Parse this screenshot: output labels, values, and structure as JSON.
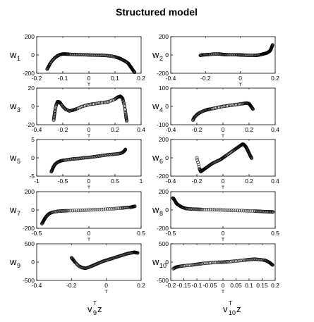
{
  "title": "Structured model",
  "chart_data": [
    {
      "type": "scatter",
      "ylabel": "w",
      "ylabel_sub": "1",
      "xlim": [
        -0.2,
        0.2
      ],
      "ylim": [
        -200,
        200
      ],
      "xticks": [
        -0.2,
        -0.1,
        0,
        0.1,
        0.2
      ],
      "xtick_labels": [
        "-0.2",
        "-0.1",
        "0",
        "0.1",
        "0.2"
      ],
      "yticks": [
        -200,
        0,
        200
      ],
      "ytick_labels": [
        "-200",
        "0",
        "200"
      ],
      "x": [
        -0.16,
        -0.155,
        -0.15,
        -0.14,
        -0.13,
        -0.12,
        -0.11,
        -0.1,
        -0.09,
        -0.08,
        -0.06,
        -0.04,
        -0.02,
        0,
        0.02,
        0.04,
        0.06,
        0.08,
        0.1,
        0.11,
        0.12,
        0.13,
        0.14,
        0.15,
        0.155,
        0.16,
        0.165,
        0.17,
        0.175
      ],
      "y": [
        -155,
        -130,
        -100,
        -60,
        -30,
        -10,
        5,
        10,
        10,
        8,
        5,
        3,
        2,
        0,
        -2,
        -3,
        -5,
        -10,
        -20,
        -30,
        -40,
        -55,
        -70,
        -90,
        -110,
        -130,
        -150,
        -170,
        -190
      ]
    },
    {
      "type": "scatter",
      "ylabel": "w",
      "ylabel_sub": "2",
      "xlim": [
        -0.4,
        0.2
      ],
      "ylim": [
        -200,
        200
      ],
      "xticks": [
        -0.4,
        -0.2,
        0,
        0.2
      ],
      "xtick_labels": [
        "-0.4",
        "-0.2",
        "0",
        "0.2"
      ],
      "yticks": [
        -200,
        0,
        200
      ],
      "ytick_labels": [
        "-200",
        "0",
        "200"
      ],
      "x": [
        -0.23,
        -0.22,
        -0.2,
        -0.18,
        -0.15,
        -0.12,
        -0.1,
        -0.08,
        -0.05,
        -0.02,
        0,
        0.02,
        0.05,
        0.08,
        0.1,
        0.12,
        0.13,
        0.14,
        0.15,
        0.16,
        0.17,
        0.175,
        0.18,
        0.185
      ],
      "y": [
        -5,
        0,
        2,
        5,
        10,
        10,
        5,
        3,
        2,
        2,
        0,
        -2,
        -5,
        -5,
        -3,
        5,
        10,
        15,
        20,
        30,
        45,
        60,
        85,
        110
      ]
    },
    {
      "type": "scatter",
      "ylabel": "w",
      "ylabel_sub": "3",
      "xlim": [
        -0.4,
        0.4
      ],
      "ylim": [
        -20,
        20
      ],
      "xticks": [
        -0.4,
        -0.2,
        0,
        0.2,
        0.4
      ],
      "xtick_labels": [
        "-0.4",
        "-0.2",
        "0",
        "0.2",
        "0.4"
      ],
      "yticks": [
        -20,
        0,
        20
      ],
      "ytick_labels": [
        "-20",
        "0",
        "20"
      ],
      "x": [
        -0.27,
        -0.265,
        -0.26,
        -0.25,
        -0.24,
        -0.23,
        -0.22,
        -0.2,
        -0.18,
        -0.15,
        -0.12,
        -0.1,
        -0.05,
        0,
        0.05,
        0.1,
        0.15,
        0.2,
        0.22,
        0.24,
        0.25,
        0.26,
        0.27,
        0.28,
        0.285,
        0.29
      ],
      "y": [
        -15,
        -10,
        -5,
        2,
        5,
        5,
        4,
        0,
        -3,
        -5,
        -4,
        -3,
        0,
        2,
        3,
        4,
        5,
        8,
        10,
        11,
        10,
        8,
        2,
        -6,
        -12,
        -16
      ]
    },
    {
      "type": "scatter",
      "ylabel": "w",
      "ylabel_sub": "4",
      "xlim": [
        -0.4,
        0.4
      ],
      "ylim": [
        -100,
        100
      ],
      "xticks": [
        -0.4,
        -0.2,
        0,
        0.2,
        0.4
      ],
      "xtick_labels": [
        "-0.4",
        "-0.2",
        "0",
        "0.2",
        "0.4"
      ],
      "yticks": [
        -100,
        0,
        100
      ],
      "ytick_labels": [
        "-100",
        "0",
        "100"
      ],
      "x": [
        -0.23,
        -0.22,
        -0.2,
        -0.18,
        -0.15,
        -0.12,
        -0.1,
        -0.05,
        0,
        0.05,
        0.1,
        0.15,
        0.18,
        0.2,
        0.21,
        0.22,
        0.23
      ],
      "y": [
        -75,
        -60,
        -45,
        -35,
        -25,
        -18,
        -15,
        -8,
        0,
        5,
        10,
        15,
        18,
        15,
        5,
        -5,
        -15
      ]
    },
    {
      "type": "scatter",
      "ylabel": "w",
      "ylabel_sub": "5",
      "xlim": [
        -1,
        1
      ],
      "ylim": [
        -5,
        5
      ],
      "xticks": [
        -1,
        -0.5,
        0,
        0.5,
        1
      ],
      "xtick_labels": [
        "-1",
        "-0.5",
        "0",
        "0.5",
        "1"
      ],
      "yticks": [
        -5,
        0,
        5
      ],
      "ytick_labels": [
        "-5",
        "0",
        "5"
      ],
      "x": [
        -0.72,
        -0.7,
        -0.68,
        -0.65,
        -0.6,
        -0.55,
        -0.5,
        -0.4,
        -0.3,
        -0.2,
        -0.1,
        0,
        0.1,
        0.2,
        0.3,
        0.4,
        0.5,
        0.6,
        0.65,
        0.68,
        0.7
      ],
      "y": [
        -3.8,
        -3.2,
        -2.5,
        -1.8,
        -1.2,
        -0.9,
        -0.7,
        -0.5,
        -0.3,
        -0.2,
        0,
        0.1,
        0.3,
        0.5,
        0.7,
        0.9,
        1.0,
        1.2,
        1.5,
        1.9,
        2.3
      ]
    },
    {
      "type": "scatter",
      "ylabel": "w",
      "ylabel_sub": "6",
      "xlim": [
        -0.4,
        0.4
      ],
      "ylim": [
        -200,
        200
      ],
      "xticks": [
        -0.4,
        -0.2,
        0,
        0.2,
        0.4
      ],
      "xtick_labels": [
        "-0.4",
        "-0.2",
        "0",
        "0.2",
        "0.4"
      ],
      "yticks": [
        -200,
        0,
        200
      ],
      "ytick_labels": [
        "-200",
        "0",
        "200"
      ],
      "x": [
        -0.2,
        -0.18,
        -0.17,
        -0.16,
        -0.15,
        -0.14,
        -0.12,
        -0.1,
        -0.08,
        -0.05,
        -0.02,
        0,
        0.02,
        0.05,
        0.08,
        0.1,
        0.12,
        0.14,
        0.15,
        0.16,
        0.17,
        0.18,
        0.19,
        0.2,
        0.21,
        0.22
      ],
      "y": [
        0,
        -120,
        -150,
        -140,
        -130,
        -120,
        -100,
        -80,
        -60,
        -40,
        -20,
        0,
        20,
        50,
        80,
        100,
        120,
        140,
        150,
        145,
        130,
        110,
        80,
        50,
        20,
        -5
      ]
    },
    {
      "type": "scatter",
      "ylabel": "w",
      "ylabel_sub": "7",
      "xlim": [
        -0.5,
        0.5
      ],
      "ylim": [
        -200,
        200
      ],
      "xticks": [
        -0.5,
        0,
        0.5
      ],
      "xtick_labels": [
        "-0.5",
        "0",
        "0.5"
      ],
      "yticks": [
        -200,
        0,
        200
      ],
      "ytick_labels": [
        "-200",
        "0",
        "200"
      ],
      "x": [
        -0.45,
        -0.44,
        -0.43,
        -0.42,
        -0.4,
        -0.38,
        -0.35,
        -0.3,
        -0.25,
        -0.2,
        -0.1,
        0,
        0.1,
        0.2,
        0.3,
        0.35,
        0.4,
        0.42,
        0.44
      ],
      "y": [
        -150,
        -130,
        -110,
        -90,
        -60,
        -40,
        -25,
        -15,
        -10,
        -8,
        -5,
        0,
        5,
        10,
        20,
        25,
        30,
        35,
        40
      ]
    },
    {
      "type": "scatter",
      "ylabel": "w",
      "ylabel_sub": "8",
      "xlim": [
        -0.5,
        0.5
      ],
      "ylim": [
        -200,
        200
      ],
      "xticks": [
        -0.5,
        0,
        0.5
      ],
      "xtick_labels": [
        "-0.5",
        "0",
        "0.5"
      ],
      "yticks": [
        -200,
        0,
        200
      ],
      "ytick_labels": [
        "-200",
        "0",
        "200"
      ],
      "x": [
        -0.48,
        -0.47,
        -0.46,
        -0.45,
        -0.44,
        -0.42,
        -0.4,
        -0.38,
        -0.35,
        -0.3,
        -0.25,
        -0.2,
        -0.1,
        0,
        0.1,
        0.2,
        0.3,
        0.35,
        0.4,
        0.45,
        0.48
      ],
      "y": [
        130,
        120,
        100,
        80,
        65,
        50,
        35,
        25,
        15,
        10,
        8,
        5,
        2,
        0,
        -5,
        -8,
        -12,
        -15,
        -18,
        -20,
        -22
      ]
    },
    {
      "type": "scatter",
      "ylabel": "w",
      "ylabel_sub": "9",
      "xlim": [
        -0.4,
        0.2
      ],
      "ylim": [
        -500,
        500
      ],
      "xticks": [
        -0.4,
        -0.2,
        0,
        0.2
      ],
      "xtick_labels": [
        "-0.4",
        "-0.2",
        "0",
        "0.2"
      ],
      "yticks": [
        -500,
        0,
        500
      ],
      "ytick_labels": [
        "-500",
        "0",
        "500"
      ],
      "x": [
        -0.2,
        -0.19,
        -0.18,
        -0.16,
        -0.14,
        -0.12,
        -0.1,
        -0.08,
        -0.06,
        -0.04,
        -0.02,
        0,
        0.02,
        0.04,
        0.06,
        0.08,
        0.1,
        0.12,
        0.14,
        0.16,
        0.17,
        0.18
      ],
      "y": [
        120,
        60,
        0,
        -100,
        -150,
        -170,
        -140,
        -100,
        -60,
        -20,
        20,
        50,
        80,
        110,
        140,
        170,
        200,
        230,
        250,
        270,
        260,
        250
      ]
    },
    {
      "type": "scatter",
      "ylabel": "w",
      "ylabel_sub": "10",
      "xlim": [
        -0.2,
        0.2
      ],
      "ylim": [
        -500,
        500
      ],
      "xticks": [
        -0.2,
        -0.15,
        -0.1,
        -0.05,
        0,
        0.05,
        0.1,
        0.15,
        0.2
      ],
      "xtick_labels": [
        "-0.2",
        "-0.15",
        "-0.1",
        "-0.05",
        "0",
        "0.05",
        "0.1",
        "0.15",
        "0.2"
      ],
      "yticks": [
        -500,
        0,
        500
      ],
      "ytick_labels": [
        "-500",
        "0",
        "500"
      ],
      "x": [
        -0.19,
        -0.18,
        -0.17,
        -0.15,
        -0.12,
        -0.1,
        -0.08,
        -0.05,
        -0.02,
        0,
        0.02,
        0.05,
        0.08,
        0.1,
        0.12,
        0.14,
        0.16,
        0.17,
        0.18,
        0.185,
        0.19
      ],
      "y": [
        -180,
        -140,
        -120,
        -100,
        -80,
        -60,
        -40,
        -20,
        -5,
        0,
        10,
        30,
        50,
        70,
        80,
        70,
        50,
        20,
        -20,
        -50,
        -80
      ]
    }
  ],
  "xlabel_left": {
    "base": "v",
    "sup": "T",
    "sub": "9",
    "tail": "z"
  },
  "xlabel_right": {
    "base": "v",
    "sup": "T",
    "sub": "10",
    "tail": "z"
  }
}
